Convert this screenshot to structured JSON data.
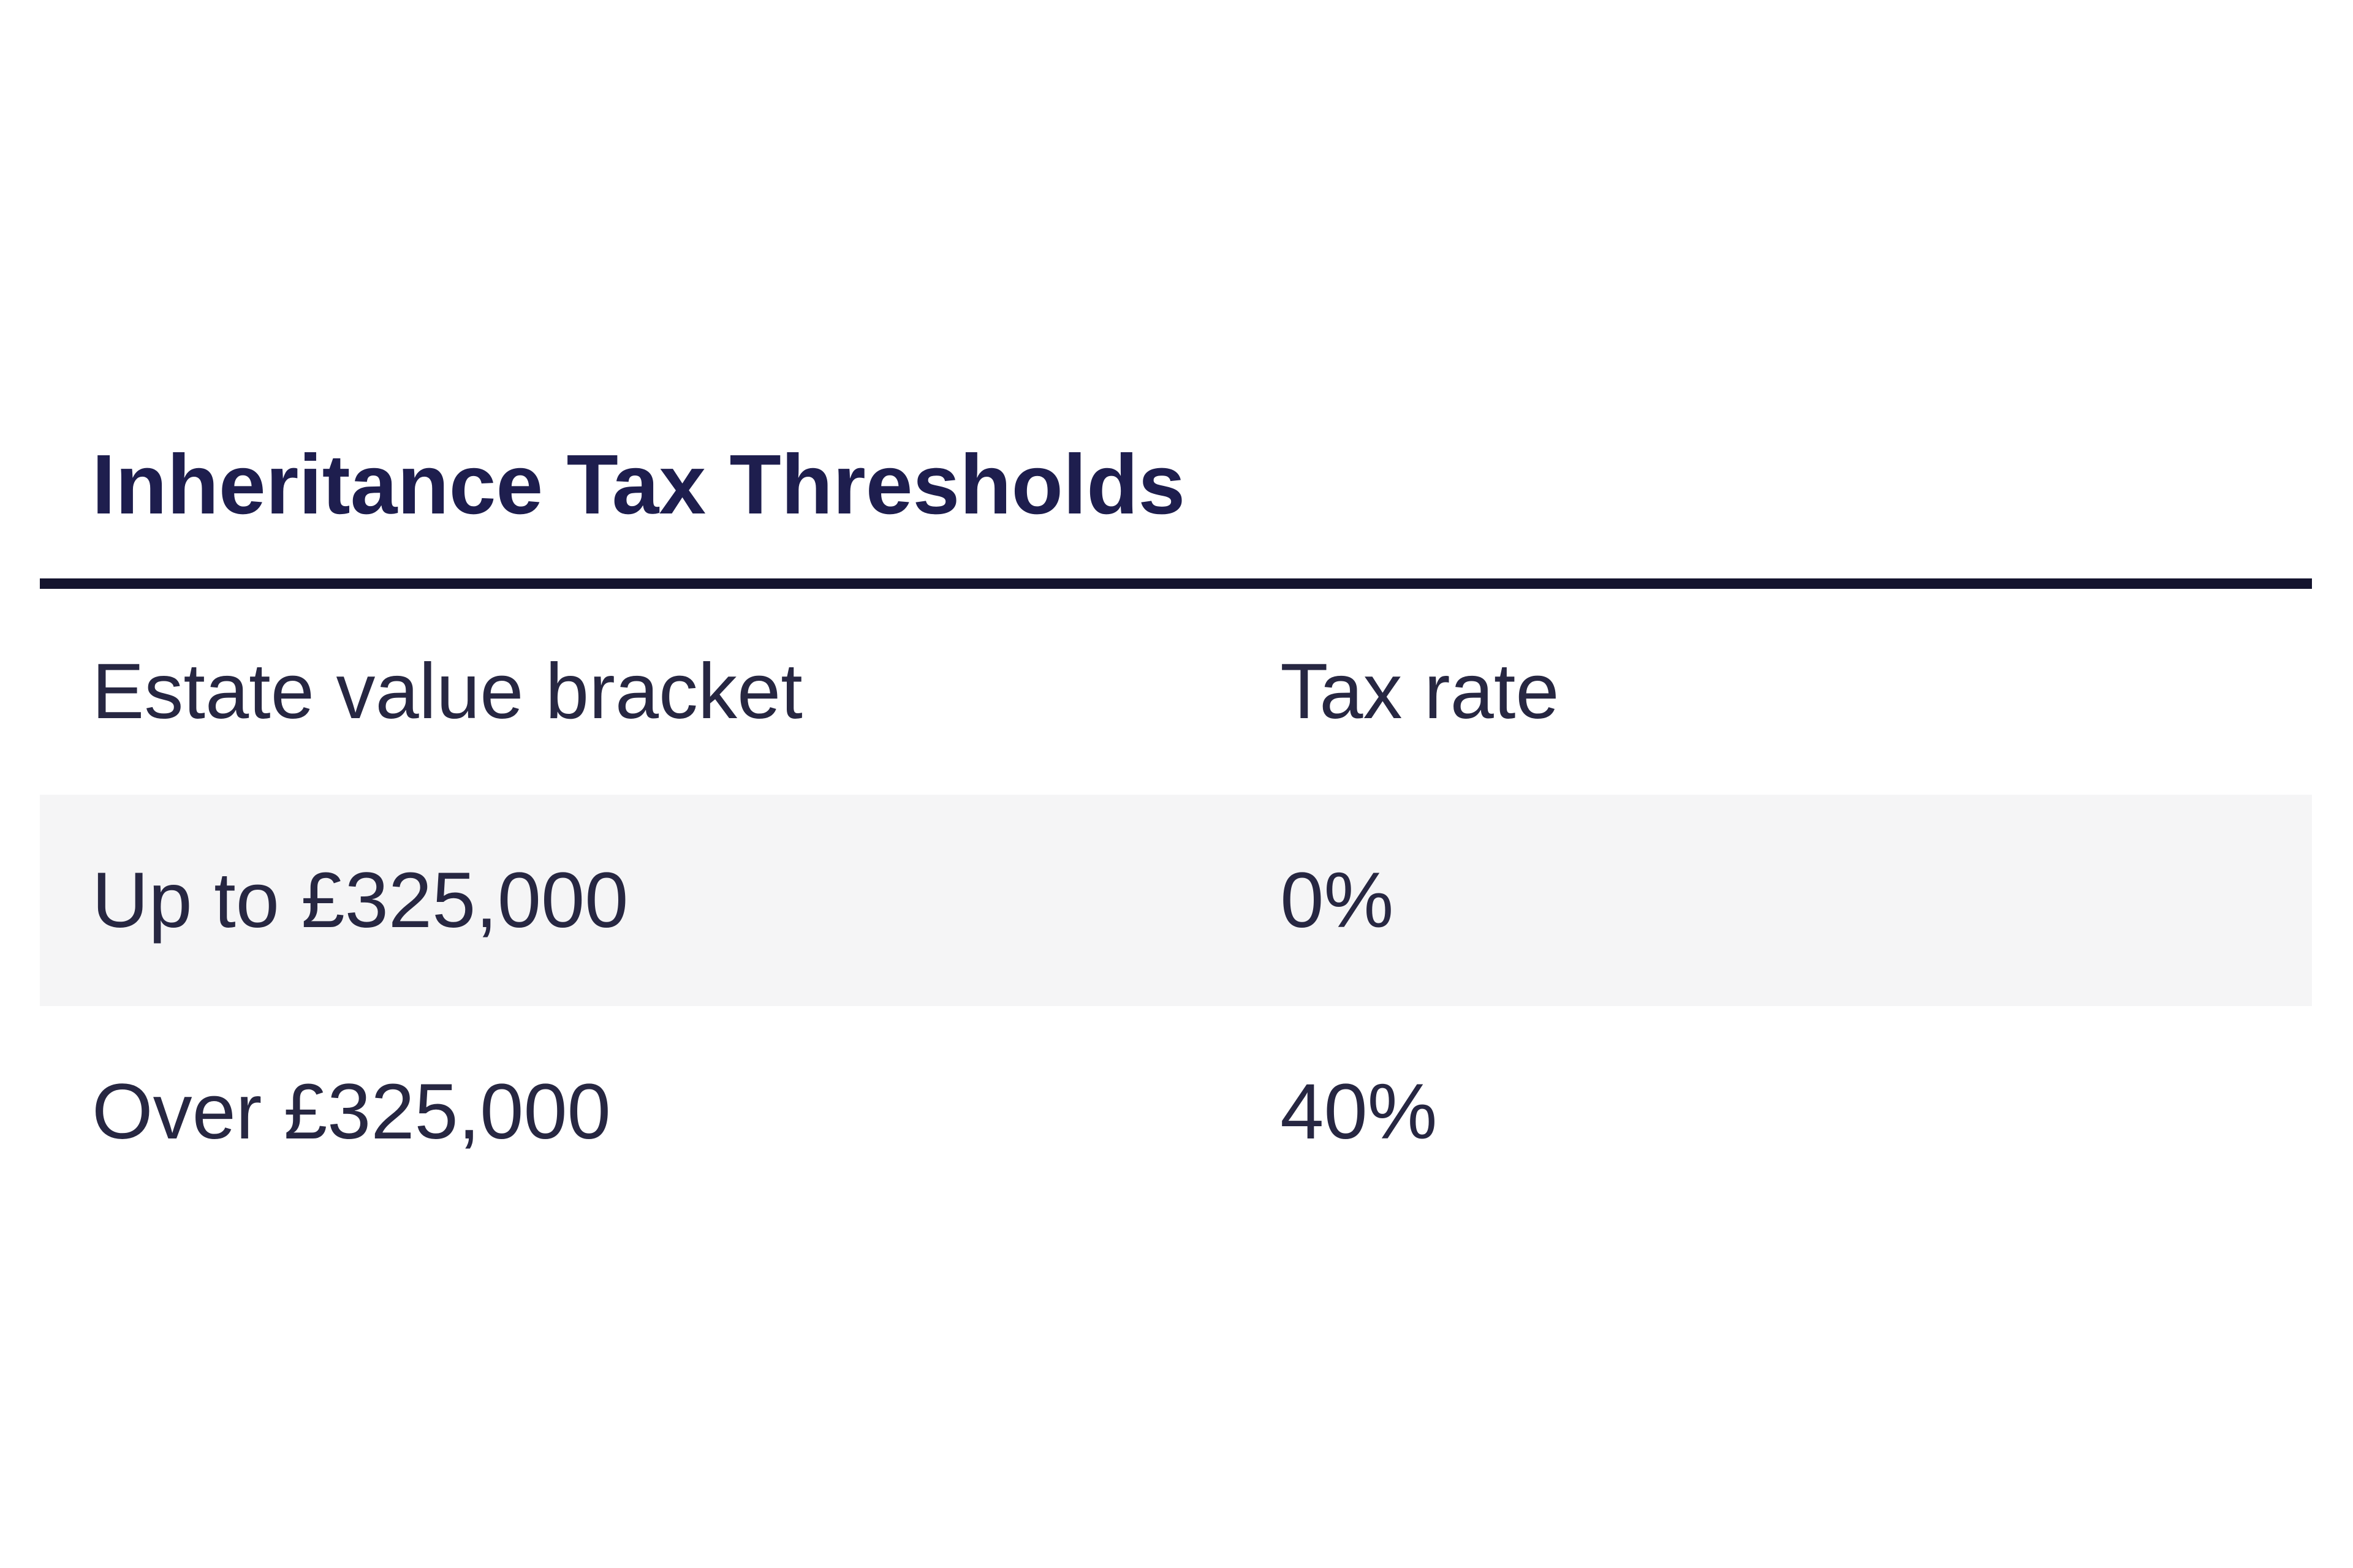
{
  "page": {
    "title": "Inheritance Tax Thresholds"
  },
  "table": {
    "headers": {
      "bracket": "Estate value bracket",
      "rate": "Tax rate"
    },
    "rows": [
      {
        "bracket": "Up to £325,000",
        "rate": "0%"
      },
      {
        "bracket": "Over £325,000",
        "rate": "40%"
      }
    ]
  },
  "colors": {
    "background": "#ffffff",
    "title_text": "#1e1e4e",
    "body_text": "#272742",
    "divider": "#14142e",
    "shaded_row_bg": "#f5f5f6"
  }
}
